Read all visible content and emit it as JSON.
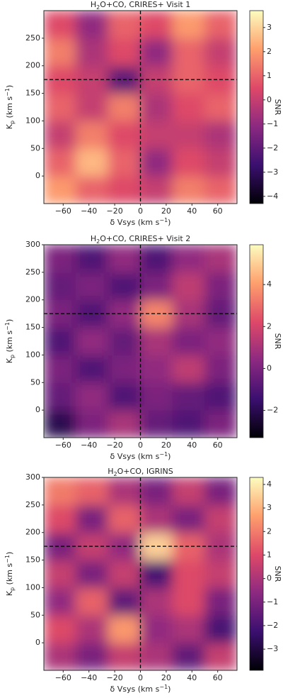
{
  "chart_data": [
    {
      "type": "heatmap",
      "title": [
        "H",
        "2",
        "O+CO, CRIRES+ Visit 1"
      ],
      "xlabel": [
        "δ Vsys (km s",
        "−1",
        ")"
      ],
      "ylabel": [
        "K",
        "p",
        " (km s",
        "−1",
        ")"
      ],
      "colorbar_label": "SNR",
      "xlim": [
        -75,
        75
      ],
      "ylim": [
        -50,
        300
      ],
      "xticks": [
        {
          "value": -60,
          "label": "−60"
        },
        {
          "value": -40,
          "label": "−40"
        },
        {
          "value": -20,
          "label": "−20"
        },
        0,
        20,
        40,
        60
      ],
      "yticks": [
        0,
        50,
        100,
        150,
        200,
        250
      ],
      "xbins": [
        -75,
        -50,
        -25,
        0,
        25,
        50,
        75
      ],
      "ybins": [
        -50,
        0,
        50,
        100,
        150,
        200,
        250,
        300
      ],
      "z": [
        [
          2,
          1,
          0.5,
          0,
          1.5,
          1
        ],
        [
          1,
          2.5,
          1,
          -1,
          0.5,
          0
        ],
        [
          0,
          1.5,
          0.5,
          0,
          0,
          -0.5
        ],
        [
          1,
          0,
          1.5,
          -0.5,
          0.5,
          1
        ],
        [
          0.5,
          0,
          -2,
          0,
          1,
          0.5
        ],
        [
          1.5,
          -0.5,
          0.5,
          -1,
          1,
          0
        ],
        [
          0.5,
          -1,
          1,
          0.5,
          2,
          1
        ]
      ],
      "zlim": [
        -4.3,
        3.7
      ],
      "zticks": [
        {
          "value": -4,
          "label": "−4"
        },
        {
          "value": -3,
          "label": "−3"
        },
        {
          "value": -2,
          "label": "−2"
        },
        {
          "value": -1,
          "label": "−1"
        },
        0,
        1,
        2,
        3
      ],
      "colormap": [
        "#000004",
        "#3b0f70",
        "#8c2981",
        "#de4968",
        "#fe9f6d",
        "#fcfdbf"
      ],
      "crosshair": {
        "x": 0,
        "y": 175
      }
    },
    {
      "type": "heatmap",
      "title": [
        "H",
        "2",
        "O+CO, CRIRES+ Visit 2"
      ],
      "xlabel": [
        "δ Vsys (km s",
        "−1",
        ")"
      ],
      "ylabel": [
        "K",
        "p",
        " (km s",
        "−1",
        ")"
      ],
      "colorbar_label": "SNR",
      "xlim": [
        -75,
        75
      ],
      "ylim": [
        -50,
        300
      ],
      "xticks": [
        {
          "value": -60,
          "label": "−60"
        },
        {
          "value": -40,
          "label": "−40"
        },
        {
          "value": -20,
          "label": "−20"
        },
        0,
        20,
        40,
        60
      ],
      "yticks": [
        0,
        50,
        100,
        150,
        200,
        250,
        300
      ],
      "xbins": [
        -75,
        -50,
        -25,
        0,
        25,
        50,
        75
      ],
      "ybins": [
        -50,
        0,
        50,
        100,
        150,
        200,
        250,
        300
      ],
      "z": [
        [
          -2,
          0,
          1,
          -0.5,
          -1,
          0
        ],
        [
          -0.5,
          0.5,
          -1,
          0,
          -0.5,
          -1
        ],
        [
          0,
          -1,
          0,
          0.5,
          1.5,
          0
        ],
        [
          -1,
          0.5,
          -0.5,
          1,
          0,
          0.5
        ],
        [
          0,
          -1,
          0.5,
          3.5,
          1,
          -0.5
        ],
        [
          -0.5,
          0,
          -1,
          0,
          1.5,
          0
        ],
        [
          0,
          -1,
          0.5,
          -1,
          0.5,
          1
        ]
      ],
      "zlim": [
        -3.3,
        5.9
      ],
      "zticks": [
        {
          "value": -2,
          "label": "−2"
        },
        0,
        2,
        4
      ],
      "colormap": [
        "#000004",
        "#3b0f70",
        "#8c2981",
        "#de4968",
        "#fe9f6d",
        "#fcfdbf"
      ],
      "crosshair": {
        "x": 0,
        "y": 175
      }
    },
    {
      "type": "heatmap",
      "title": [
        "H",
        "2",
        "O+CO, IGRINS"
      ],
      "xlabel": [
        "δ Vsys (km s",
        "−1",
        ")"
      ],
      "ylabel": [
        "K",
        "p",
        " (km s",
        "−1",
        ")"
      ],
      "colorbar_label": "SNR",
      "xlim": [
        -75,
        75
      ],
      "ylim": [
        -50,
        300
      ],
      "xticks": [
        {
          "value": -60,
          "label": "−60"
        },
        {
          "value": -40,
          "label": "−40"
        },
        {
          "value": -20,
          "label": "−20"
        },
        0,
        20,
        40,
        60
      ],
      "yticks": [
        0,
        50,
        100,
        150,
        200,
        250,
        300
      ],
      "xbins": [
        -75,
        -50,
        -25,
        0,
        25,
        50,
        75
      ],
      "ybins": [
        -50,
        0,
        50,
        100,
        150,
        200,
        250,
        300
      ],
      "z": [
        [
          0,
          -1,
          0.5,
          0,
          -1.5,
          0.5
        ],
        [
          1,
          0,
          2.5,
          -0.5,
          0,
          -2
        ],
        [
          -0.5,
          1.5,
          -1.5,
          0,
          1,
          -1
        ],
        [
          0.5,
          -1,
          0.5,
          -2,
          1,
          0.5
        ],
        [
          -1,
          0.5,
          -0.5,
          3.5,
          1.5,
          0
        ],
        [
          1,
          -1,
          1.5,
          0,
          -1,
          0.5
        ],
        [
          2,
          1.5,
          0,
          -1,
          0.5,
          -1
        ]
      ],
      "zlim": [
        -3.9,
        4.3
      ],
      "zticks": [
        {
          "value": -3,
          "label": "−3"
        },
        {
          "value": -2,
          "label": "−2"
        },
        {
          "value": -1,
          "label": "−1"
        },
        0,
        1,
        2,
        3,
        4
      ],
      "colormap": [
        "#000004",
        "#3b0f70",
        "#8c2981",
        "#de4968",
        "#fe9f6d",
        "#fcfdbf"
      ],
      "crosshair": {
        "x": 0,
        "y": 175
      }
    }
  ]
}
